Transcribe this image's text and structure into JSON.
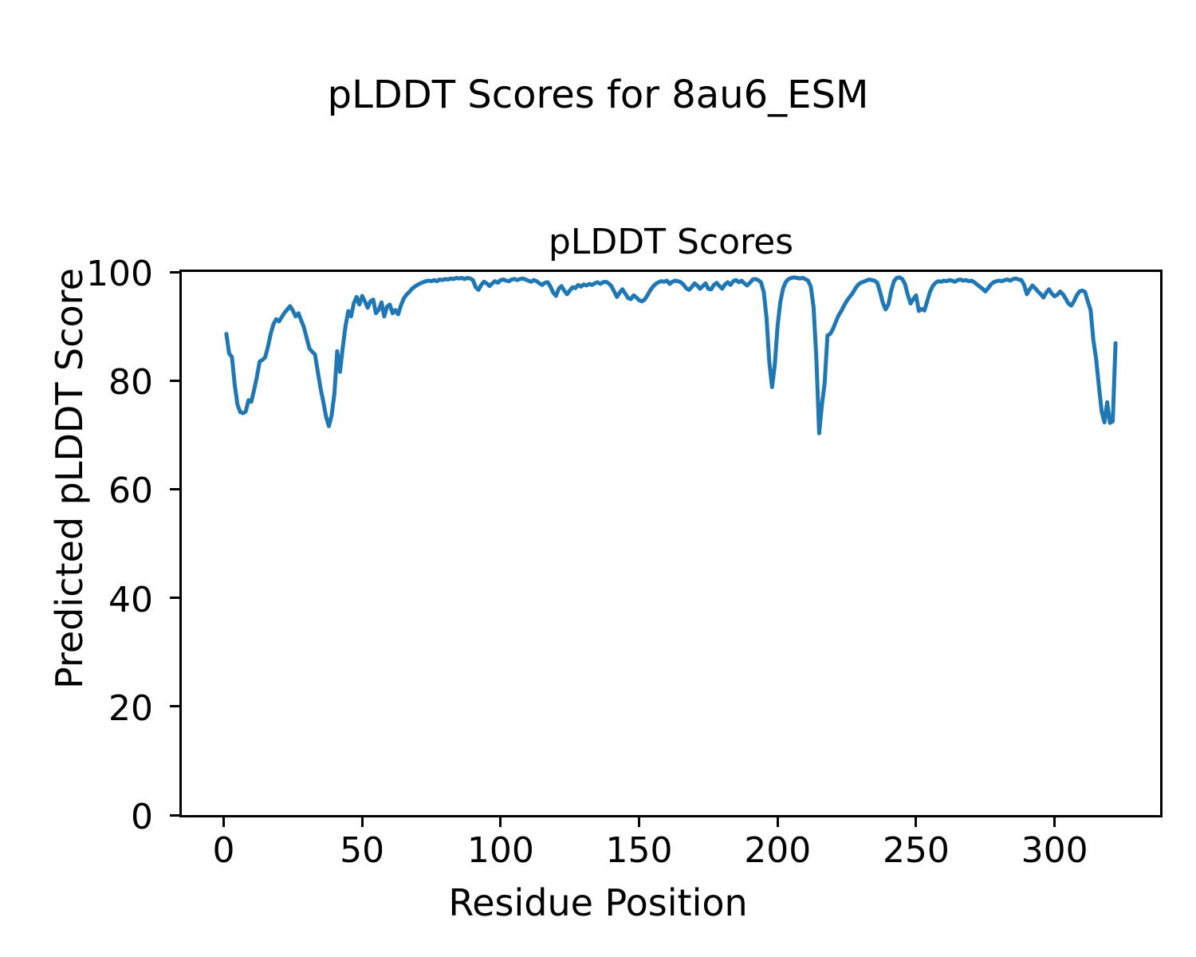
{
  "figure": {
    "suptitle": "pLDDT Scores for 8au6_ESM",
    "axes_title": "pLDDT Scores",
    "xlabel": "Residue Position",
    "ylabel": "Predicted pLDDT Score"
  },
  "colors": {
    "line": "#1f77b4",
    "axes": "#000000",
    "background": "#ffffff",
    "text": "#000000"
  },
  "chart_data": {
    "type": "line",
    "title": "pLDDT Scores",
    "suptitle": "pLDDT Scores for 8au6_ESM",
    "xlabel": "Residue Position",
    "ylabel": "Predicted pLDDT Score",
    "grid": false,
    "legend_position": "none",
    "x_start": 1,
    "x_step": 1,
    "xlim": [
      -15.1,
      338.1
    ],
    "ylim": [
      0,
      100
    ],
    "x_ticks": [
      0,
      50,
      100,
      150,
      200,
      250,
      300
    ],
    "y_ticks": [
      0,
      20,
      40,
      60,
      80,
      100
    ],
    "series": [
      {
        "name": "pLDDT",
        "values": [
          88.6,
          85.0,
          84.3,
          79.2,
          75.6,
          74.2,
          74.0,
          74.3,
          76.4,
          76.1,
          78.3,
          80.6,
          83.5,
          83.8,
          84.3,
          86.2,
          88.6,
          90.4,
          91.3,
          90.9,
          91.7,
          92.5,
          93.1,
          93.7,
          92.9,
          91.8,
          92.4,
          91.1,
          89.8,
          87.8,
          85.9,
          85.3,
          84.8,
          81.6,
          78.6,
          76.1,
          73.3,
          71.6,
          73.6,
          77.6,
          85.4,
          81.6,
          86.0,
          90.0,
          92.8,
          91.8,
          94.2,
          95.4,
          94.0,
          95.6,
          94.6,
          93.4,
          94.6,
          94.9,
          92.4,
          93.0,
          94.4,
          91.8,
          93.6,
          94.0,
          92.4,
          93.0,
          92.2,
          93.8,
          95.1,
          95.8,
          96.3,
          96.9,
          97.3,
          97.6,
          97.9,
          98.1,
          98.3,
          98.4,
          98.3,
          98.5,
          98.3,
          98.6,
          98.5,
          98.7,
          98.6,
          98.8,
          98.7,
          98.9,
          98.8,
          98.9,
          98.7,
          98.9,
          98.8,
          98.5,
          97.2,
          96.7,
          97.6,
          98.2,
          97.9,
          97.4,
          97.9,
          98.3,
          98.0,
          98.5,
          98.6,
          98.4,
          98.3,
          98.6,
          98.7,
          98.5,
          98.7,
          98.8,
          98.6,
          98.4,
          98.2,
          98.5,
          98.3,
          97.9,
          97.6,
          98.0,
          98.1,
          97.3,
          96.2,
          95.6,
          96.9,
          97.4,
          96.5,
          95.9,
          96.6,
          97.2,
          97.0,
          97.6,
          97.3,
          97.7,
          97.5,
          97.8,
          97.6,
          97.9,
          98.1,
          97.8,
          98.1,
          98.2,
          97.9,
          97.4,
          96.4,
          95.4,
          96.2,
          96.8,
          96.0,
          95.2,
          95.0,
          95.7,
          95.3,
          94.8,
          94.6,
          94.9,
          95.7,
          96.6,
          97.3,
          97.8,
          98.1,
          98.3,
          98.2,
          98.4,
          97.8,
          98.2,
          98.4,
          98.3,
          98.1,
          97.7,
          97.0,
          96.7,
          97.2,
          97.9,
          97.5,
          96.9,
          97.4,
          97.9,
          96.9,
          96.8,
          97.6,
          98.0,
          97.4,
          96.9,
          97.7,
          98.1,
          97.6,
          98.3,
          98.5,
          98.1,
          98.4,
          97.9,
          97.5,
          98.0,
          98.6,
          98.7,
          98.5,
          98.1,
          96.3,
          91.5,
          83.5,
          78.8,
          83.0,
          90.0,
          94.5,
          97.0,
          98.2,
          98.7,
          98.9,
          99.0,
          98.9,
          98.8,
          98.9,
          98.7,
          98.4,
          97.3,
          93.5,
          84.0,
          70.3,
          75.5,
          79.6,
          88.3,
          88.6,
          89.5,
          90.8,
          92.0,
          92.8,
          93.8,
          94.7,
          95.4,
          96.0,
          96.9,
          97.6,
          98.0,
          98.2,
          98.4,
          98.6,
          98.5,
          98.4,
          98.0,
          96.3,
          94.3,
          93.1,
          94.0,
          96.5,
          98.3,
          98.9,
          99.0,
          98.7,
          97.8,
          95.8,
          94.2,
          95.0,
          95.7,
          92.8,
          93.2,
          92.9,
          94.6,
          96.3,
          97.4,
          98.0,
          98.3,
          98.2,
          98.4,
          98.3,
          98.5,
          98.4,
          98.2,
          98.5,
          98.6,
          98.4,
          98.5,
          98.3,
          98.4,
          98.1,
          97.7,
          97.3,
          96.9,
          96.4,
          97.0,
          97.7,
          98.1,
          98.3,
          98.4,
          98.3,
          98.5,
          98.6,
          98.4,
          98.7,
          98.8,
          98.6,
          98.5,
          97.6,
          95.9,
          96.8,
          97.5,
          97.0,
          96.4,
          95.9,
          95.3,
          96.2,
          96.8,
          96.0,
          95.5,
          95.8,
          96.4,
          95.9,
          95.1,
          94.2,
          93.8,
          94.6,
          95.7,
          96.4,
          96.6,
          96.3,
          94.6,
          93.0,
          87.4,
          83.9,
          79.0,
          74.3,
          72.3,
          76.0,
          72.2,
          72.5,
          86.9
        ]
      }
    ]
  }
}
